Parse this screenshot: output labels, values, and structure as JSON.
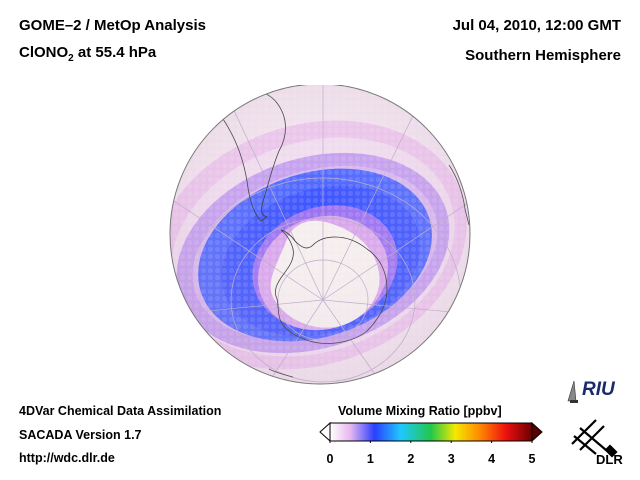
{
  "header": {
    "title_line1": "GOME–2 / MetOp Analysis",
    "species_main": "ClONO",
    "species_sub": "2",
    "species_rest": " at 55.4 hPa",
    "datetime": "Jul 04, 2010, 12:00 GMT",
    "region": "Southern Hemisphere"
  },
  "footer": {
    "line1": "4DVar Chemical Data Assimilation",
    "line2": "SACADA Version 1.7",
    "line3": "http://wdc.dlr.de"
  },
  "colorbar": {
    "title": "Volume Mixing Ratio [ppbv]",
    "ticks": [
      "0",
      "1",
      "2",
      "3",
      "4",
      "5"
    ],
    "range": [
      0,
      5
    ],
    "colors": [
      "#ffffff",
      "#e8b8ee",
      "#2a3fff",
      "#1ec8ff",
      "#22c84a",
      "#f5e800",
      "#ff8a00",
      "#ee1010",
      "#6a0000"
    ]
  },
  "logos": {
    "riu": "RIU",
    "dlr": "DLR"
  },
  "map": {
    "projection": "orthographic polar (south)",
    "colors": {
      "background": "#f2e4ee",
      "low_pink": "#e8b2e6",
      "mid_violet": "#a878f0",
      "band_blue": "#3552ff",
      "vortex_core": "#f5eeee"
    }
  }
}
